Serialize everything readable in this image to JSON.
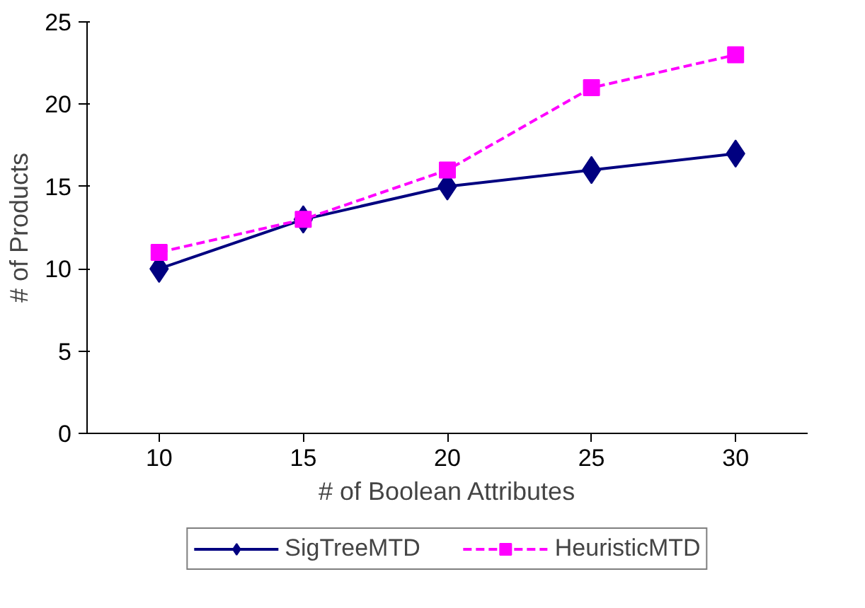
{
  "chart_data": {
    "type": "line",
    "xlabel": "# of Boolean Attributes",
    "ylabel": "# of Products",
    "categories": [
      "10",
      "15",
      "20",
      "25",
      "30"
    ],
    "ylim": [
      0,
      25
    ],
    "yticks": [
      0,
      5,
      10,
      15,
      20,
      25
    ],
    "grid": false,
    "legend": "bottom",
    "series": [
      {
        "name": "SigTreeMTD",
        "color": "#000080",
        "values": [
          10,
          13,
          15,
          16,
          17
        ],
        "marker": "diamond",
        "line_style": "solid"
      },
      {
        "name": "HeuristicMTD",
        "color": "#ff00ff",
        "values": [
          11,
          13,
          16,
          21,
          23
        ],
        "marker": "square",
        "line_style": "dashed"
      }
    ]
  }
}
